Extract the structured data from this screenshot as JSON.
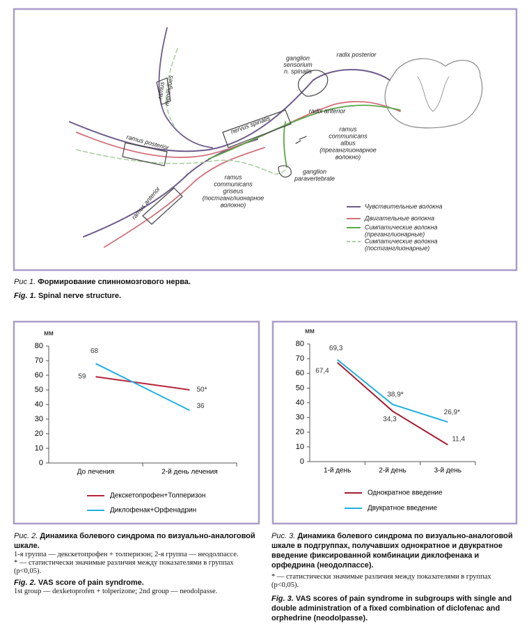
{
  "figure1": {
    "labels": [
      [
        "ramus",
        "meningues"
      ],
      [
        "ganglion",
        "sensorium",
        "n. spinalis"
      ],
      [
        "radix posterior"
      ],
      [
        "radix anterior"
      ],
      [
        "nervus spinalis"
      ],
      [
        "ramus posterior"
      ],
      [
        "ramus anterior"
      ],
      [
        "ramus",
        "communicans",
        "albus",
        "(преганглионарное",
        "волокно)"
      ],
      [
        "ramus",
        "communicans",
        "griseus",
        "(постганглионарное",
        "волокно)"
      ],
      [
        "ganglion",
        "paravertebrale"
      ]
    ],
    "legend": [
      {
        "lines": [
          "Чувствительные волокна"
        ],
        "color": "#6d5a8a"
      },
      {
        "lines": [
          "Двигательные волокна"
        ],
        "color": "#d0707a"
      },
      {
        "lines": [
          "Симпатические волокна",
          "(преганглионарные)"
        ],
        "color": "#5aa648"
      },
      {
        "lines": [
          "Симпатические волокна",
          "(постганглионарные)"
        ],
        "color": "#a8d0a0"
      }
    ],
    "caption": {
      "num": "Рис 1.",
      "text": "Формирование спинномозгового нерва.",
      "num_en": "Fig. 1.",
      "text_en": "Spinal nerve structure."
    }
  },
  "chart_data": [
    {
      "type": "line",
      "y_label": "мм",
      "categories": [
        "До лечения",
        "2-й день лечения"
      ],
      "ylim": [
        0,
        80
      ],
      "yticks": [
        0,
        10,
        20,
        30,
        40,
        50,
        60,
        70,
        80
      ],
      "series": [
        {
          "name": "Декскетопрофен+Толперизон",
          "color": "#b5233a",
          "values": [
            59,
            50
          ],
          "value_labels": [
            "59",
            "50*"
          ]
        },
        {
          "name": "Диклофенак+Орфенадрин",
          "color": "#1fb0e0",
          "values": [
            68,
            36
          ],
          "value_labels": [
            "68",
            "36"
          ]
        }
      ]
    },
    {
      "type": "line",
      "y_label": "мм",
      "categories": [
        "1-й день",
        "2-й день",
        "3-й день"
      ],
      "ylim": [
        0,
        80
      ],
      "yticks": [
        0,
        10,
        20,
        30,
        40,
        50,
        60,
        70,
        80
      ],
      "series": [
        {
          "name": "Однократное введение",
          "color": "#a51c30",
          "values": [
            67.4,
            34.3,
            11.4
          ],
          "value_labels": [
            "67,4",
            "34,3",
            "11,4"
          ]
        },
        {
          "name": "Двукратное введение",
          "color": "#1fb0e0",
          "values": [
            69.3,
            38.9,
            26.9
          ],
          "value_labels": [
            "69,3",
            "38,9*",
            "26,9*"
          ]
        }
      ]
    }
  ],
  "captions": {
    "figure2": {
      "num": "Рис. 2.",
      "title": "Динамика болевого синдрома по визуально-аналоговой шкале.",
      "note1": "1-я группа — декскетопрофен + толперизон; 2-я группа — неодолпассе.",
      "note2": "* — статистически значимые различия между показателями в группах (p<0,05).",
      "num_en": "Fig. 2.",
      "title_en": "VAS score of pain syndrome.",
      "note_en": "1st group — dexketoprofen + tolperizone; 2nd group — neodolpasse."
    },
    "figure3": {
      "num": "Рис. 3.",
      "title": "Динамика болевого синдрома по визуально-аналоговой шкале в подгруппах, получавших однократное и двукратное введение фиксированной комбинации диклофенака и орфедрина (неодолпассе).",
      "note": "* — статистически значимые различия между показателями в группах (p<0,05).",
      "num_en": "Fig. 3.",
      "title_en": "VAS scores of pain syndrome in subgroups with single and double administration of a fixed combination of diclofenac and orphedrine (neodolpasse)."
    }
  }
}
